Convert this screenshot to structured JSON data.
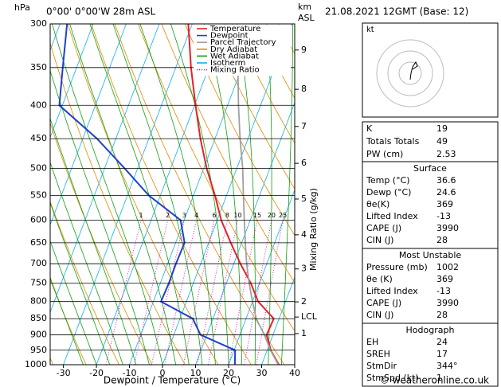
{
  "chart_data": {
    "type": "skewt",
    "header": {
      "pressure_unit": "hPa",
      "location": "0°00' 0°00'W 28m ASL",
      "height_unit": "km",
      "height_ref": "ASL",
      "date": "21.08.2021 12GMT (Base: 12)"
    },
    "xlabel": "Dewpoint / Temperature (°C)",
    "y2label": "Mixing Ratio (g/kg)",
    "xlim": [
      -34,
      40
    ],
    "xticks": [
      -30,
      -20,
      -10,
      0,
      10,
      20,
      30,
      40
    ],
    "ylim": [
      1000,
      300
    ],
    "yticks": [
      300,
      350,
      400,
      450,
      500,
      550,
      600,
      650,
      700,
      750,
      800,
      850,
      900,
      950,
      1000
    ],
    "log_scale": true,
    "height_ticks": [
      {
        "value": 329,
        "label": "9"
      },
      {
        "value": 378,
        "label": "8"
      },
      {
        "value": 431,
        "label": "7"
      },
      {
        "value": 491,
        "label": "6"
      },
      {
        "value": 557,
        "label": "5"
      },
      {
        "value": 632,
        "label": "4"
      },
      {
        "value": 713,
        "label": "3"
      },
      {
        "value": 801,
        "label": "2"
      },
      {
        "value": 845,
        "label": "LCL"
      },
      {
        "value": 896,
        "label": "1"
      }
    ],
    "levels": [
      1000,
      950,
      900,
      850,
      800,
      750,
      700,
      650,
      600,
      550,
      500,
      450,
      400,
      350,
      300
    ],
    "series": [
      {
        "name": "Temperature",
        "color": "#e8202a",
        "values": [
          35.2,
          31.1,
          28.1,
          28.4,
          21.7,
          17.4,
          12.0,
          6.7,
          1.2,
          -3.5,
          -9.1,
          -14.4,
          -19.7,
          -25.4,
          -31.2
        ]
      },
      {
        "name": "Dewpoint",
        "color": "#2040d0",
        "values": [
          21.9,
          20.3,
          8.1,
          3.9,
          -7.7,
          -7.4,
          -7.5,
          -7.3,
          -11.1,
          -23.5,
          -33.9,
          -45.7,
          -60.9,
          -64.2,
          -67.9
        ]
      },
      {
        "name": "Parcel Trajectory",
        "color": "#a0a0a0",
        "values": [
          35,
          31,
          27.4,
          23.1,
          20,
          16.9,
          13.9,
          11.1,
          8.2,
          5.1,
          1.8,
          -2.4,
          -6.7,
          -11.2,
          null
        ]
      }
    ],
    "reference_lines": [
      {
        "name": "Dry Adiabat",
        "color": "#e08a00"
      },
      {
        "name": "Wet Adiabat",
        "color": "#10a010"
      },
      {
        "name": "Isotherm",
        "color": "#10b0e8"
      },
      {
        "name": "Mixing Ratio",
        "color": "#d010c0",
        "values": [
          1,
          2,
          3,
          4,
          6,
          8,
          10,
          15,
          20,
          25
        ]
      }
    ]
  },
  "hodograph": {
    "unit": "kt"
  },
  "panel": {
    "stats": [
      [
        "K",
        "19"
      ],
      [
        "Totals Totals",
        "49"
      ],
      [
        "PW (cm)",
        "2.53"
      ]
    ],
    "sections": [
      {
        "title": "Surface",
        "rows": [
          [
            "Temp (°C)",
            "36.6"
          ],
          [
            "Dewp (°C)",
            "24.6"
          ],
          [
            "θe(K)",
            "369"
          ],
          [
            "Lifted Index",
            "-13"
          ],
          [
            "CAPE (J)",
            "3990"
          ],
          [
            "CIN (J)",
            "28"
          ]
        ]
      },
      {
        "title": "Most Unstable",
        "rows": [
          [
            "Pressure (mb)",
            "1002"
          ],
          [
            "θe (K)",
            "369"
          ],
          [
            "Lifted Index",
            "-13"
          ],
          [
            "CAPE (J)",
            "3990"
          ],
          [
            "CIN (J)",
            "28"
          ]
        ]
      },
      {
        "title": "Hodograph",
        "rows": [
          [
            "EH",
            "24"
          ],
          [
            "SREH",
            "17"
          ],
          [
            "StmDir",
            "344°"
          ],
          [
            "StmSpd (kt)",
            "1"
          ]
        ]
      }
    ]
  },
  "footer": "© weatheronline.co.uk"
}
